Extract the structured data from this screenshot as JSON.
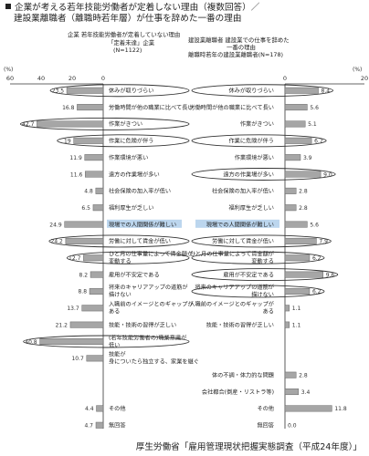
{
  "title_line1": "企業が考える若年技能労働者が定着しない理由（複数回答）／",
  "title_line2": "建設業離職者（離職時若年層）が仕事を辞めた一番の理由",
  "left_header": {
    "line1": "企業  若年技能労働者が定着していない理由",
    "line2": "「定着未達」企業",
    "line3": "(N=1122)"
  },
  "right_header": {
    "line1": "建設業離職者  建設業での仕事を辞めた",
    "line2": "一番の理由",
    "line3": "離職時若年の建設業離職者(N=178)"
  },
  "source": "厚生労働省「雇用管理現状把握実態調査（平成24年度）」",
  "colors": {
    "bar": "#a6a6a6",
    "bar_stroke": "#666666",
    "axis": "#333333",
    "ellipse": "#333333",
    "highlight": "#bcd6ee"
  },
  "chart_data": {
    "type": "bar",
    "left": {
      "unit": "(%)",
      "xlim": [
        0,
        60
      ],
      "ticks": [
        60,
        40,
        20,
        0
      ],
      "rows": [
        {
          "label": "休みが取りづらい",
          "value": 23.5,
          "value_label": "23.5",
          "circled": true
        },
        {
          "label": "労働時間が他の職業に比べて長い",
          "value": 16.8,
          "value_label": "16.8"
        },
        {
          "label": "作業がきつい",
          "value": 42.7,
          "value_label": "42.7",
          "circled": true
        },
        {
          "label": "作業に危険が伴う",
          "value": 19,
          "value_label": "19",
          "circled": true
        },
        {
          "label": "作業環境が悪い",
          "value": 11.9,
          "value_label": "11.9"
        },
        {
          "label": "遠方の作業場が多い",
          "value": 11.6,
          "value_label": "11.6"
        },
        {
          "label": "社会保険の加入率が低い",
          "value": 4.8,
          "value_label": "4.8"
        },
        {
          "label": "福利厚生が乏しい",
          "value": 6.5,
          "value_label": "6.5"
        },
        {
          "label": "現場での人間関係が難しい",
          "value": 24.9,
          "value_label": "24.9",
          "highlight": true
        },
        {
          "label": "労働に対して賃金が低い",
          "value": 24.2,
          "value_label": "24.2",
          "circled": true
        },
        {
          "label": "ひと月の仕事量によって賃金額が変動する",
          "value": 12.7,
          "value_label": "12.7",
          "circled": true
        },
        {
          "label": "雇用が不安定である",
          "value": 8.2,
          "value_label": "8.2"
        },
        {
          "label": "将来のキャリアアップの道筋が描けない",
          "value": 8.8,
          "value_label": "8.8"
        },
        {
          "label": "入職前のイメージとのギャップがある",
          "value": 13.7,
          "value_label": "13.7"
        },
        {
          "label": "技能・技術の習得が乏しい",
          "value": 21.2,
          "value_label": "21.2"
        },
        {
          "label": "(若年技能労働者の)職業意識が低い",
          "value": 40.8,
          "value_label": "40.8",
          "circled": true
        },
        {
          "label": "技能が身についたら独立する、家業を継ぐ",
          "value": 10.7,
          "value_label": "10.7"
        },
        {
          "label": "",
          "value": null,
          "value_label": ""
        },
        {
          "label": "",
          "value": null,
          "value_label": ""
        },
        {
          "label": "その他",
          "value": 4.4,
          "value_label": "4.4"
        },
        {
          "label": "無回答",
          "value": 4.7,
          "value_label": "4.7"
        }
      ]
    },
    "right": {
      "unit": "(%)",
      "xlim": [
        0,
        20
      ],
      "ticks": [
        0,
        20
      ],
      "rows": [
        {
          "label": "休みが取りづらい",
          "value": 8.4,
          "value_label": "8.4",
          "circled": true
        },
        {
          "label": "労働時間が他の職業に比べて長い",
          "value": 5.6,
          "value_label": "5.6"
        },
        {
          "label": "作業がきつい",
          "value": 5.1,
          "value_label": "5.1"
        },
        {
          "label": "作業に危険が伴う",
          "value": 6.7,
          "value_label": "6.7",
          "circled": true
        },
        {
          "label": "作業環境が悪い",
          "value": 3.9,
          "value_label": "3.9"
        },
        {
          "label": "遠方の作業場が多い",
          "value": 9.0,
          "value_label": "9.0",
          "circled": true
        },
        {
          "label": "社会保険の加入率が低い",
          "value": 2.8,
          "value_label": "2.8"
        },
        {
          "label": "福利厚生が乏しい",
          "value": 2.8,
          "value_label": "2.8"
        },
        {
          "label": "現場での人間関係が難しい",
          "value": 5.6,
          "value_label": "5.6",
          "highlight": true
        },
        {
          "label": "労働に対して賃金が低い",
          "value": 7.9,
          "value_label": "7.9",
          "circled": true
        },
        {
          "label": "ひと月の仕事量によって賃金額が変動する",
          "value": 6.2,
          "value_label": "6.2",
          "circled": true
        },
        {
          "label": "雇用が不安定である",
          "value": 9.6,
          "value_label": "9.6",
          "circled": true
        },
        {
          "label": "将来のキャリアアップの道筋が描けない",
          "value": 6.2,
          "value_label": "6.2",
          "circled": true
        },
        {
          "label": "入職前のイメージとのギャップがある",
          "value": 1.1,
          "value_label": "1.1"
        },
        {
          "label": "技能・技術の習得が乏しい",
          "value": 1.1,
          "value_label": "1.1"
        },
        {
          "label": "",
          "value": null,
          "value_label": ""
        },
        {
          "label": "",
          "value": null,
          "value_label": ""
        },
        {
          "label": "体の不調・体力的な問題",
          "value": 2.8,
          "value_label": "2.8"
        },
        {
          "label": "会社都合(倒産・リストラ等)",
          "value": 3.4,
          "value_label": "3.4"
        },
        {
          "label": "その他",
          "value": 11.8,
          "value_label": "11.8"
        },
        {
          "label": "無回答",
          "value": 0.0,
          "value_label": "0.0"
        }
      ]
    }
  }
}
